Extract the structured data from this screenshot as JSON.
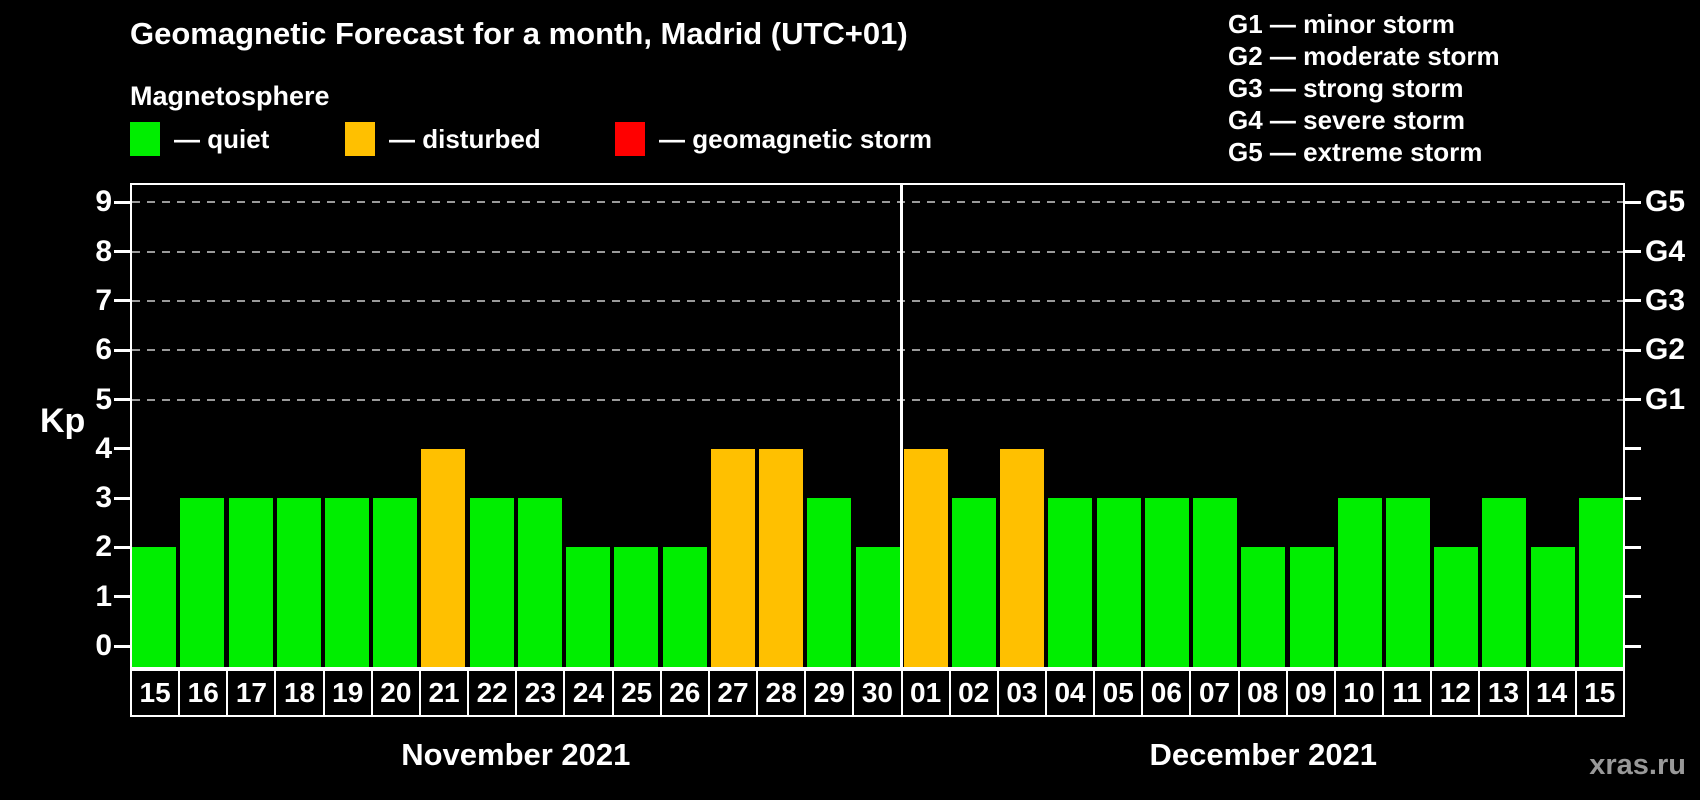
{
  "watermark": "xras.ru",
  "legend": {
    "heading": "Magnetosphere",
    "items": [
      {
        "label": "— quiet",
        "color": "#00ee00"
      },
      {
        "label": "— disturbed",
        "color": "#ffc000"
      },
      {
        "label": "— geomagnetic storm",
        "color": "#ff0000"
      }
    ]
  },
  "g_legend": [
    "G1 — minor storm",
    "G2 — moderate storm",
    "G3 — strong storm",
    "G4 — severe storm",
    "G5 — extreme storm"
  ],
  "chart_data": {
    "type": "bar",
    "title": "Geomagnetic Forecast for a month, Madrid (UTC+01)",
    "ylabel": "Kp",
    "ylim": [
      0,
      9.4
    ],
    "yticks": [
      0,
      1,
      2,
      3,
      4,
      5,
      6,
      7,
      8,
      9
    ],
    "grid": "dashed horizontal gridlines only at Kp 5-9 (G1-G5 storm levels)",
    "legend_position": "top",
    "right_axis": [
      {
        "kp": 5,
        "label": "G1"
      },
      {
        "kp": 6,
        "label": "G2"
      },
      {
        "kp": 7,
        "label": "G3"
      },
      {
        "kp": 8,
        "label": "G4"
      },
      {
        "kp": 9,
        "label": "G5"
      }
    ],
    "colors": {
      "quiet": "#00ee00",
      "disturbed": "#ffc000",
      "storm": "#ff0000"
    },
    "months": [
      {
        "label": "November 2021",
        "days": [
          {
            "day": "15",
            "kp": 2,
            "status": "quiet"
          },
          {
            "day": "16",
            "kp": 3,
            "status": "quiet"
          },
          {
            "day": "17",
            "kp": 3,
            "status": "quiet"
          },
          {
            "day": "18",
            "kp": 3,
            "status": "quiet"
          },
          {
            "day": "19",
            "kp": 3,
            "status": "quiet"
          },
          {
            "day": "20",
            "kp": 3,
            "status": "quiet"
          },
          {
            "day": "21",
            "kp": 4,
            "status": "disturbed"
          },
          {
            "day": "22",
            "kp": 3,
            "status": "quiet"
          },
          {
            "day": "23",
            "kp": 3,
            "status": "quiet"
          },
          {
            "day": "24",
            "kp": 2,
            "status": "quiet"
          },
          {
            "day": "25",
            "kp": 2,
            "status": "quiet"
          },
          {
            "day": "26",
            "kp": 2,
            "status": "quiet"
          },
          {
            "day": "27",
            "kp": 4,
            "status": "disturbed"
          },
          {
            "day": "28",
            "kp": 4,
            "status": "disturbed"
          },
          {
            "day": "29",
            "kp": 3,
            "status": "quiet"
          },
          {
            "day": "30",
            "kp": 2,
            "status": "quiet"
          }
        ]
      },
      {
        "label": "December 2021",
        "days": [
          {
            "day": "01",
            "kp": 4,
            "status": "disturbed"
          },
          {
            "day": "02",
            "kp": 3,
            "status": "quiet"
          },
          {
            "day": "03",
            "kp": 4,
            "status": "disturbed"
          },
          {
            "day": "04",
            "kp": 3,
            "status": "quiet"
          },
          {
            "day": "05",
            "kp": 3,
            "status": "quiet"
          },
          {
            "day": "06",
            "kp": 3,
            "status": "quiet"
          },
          {
            "day": "07",
            "kp": 3,
            "status": "quiet"
          },
          {
            "day": "08",
            "kp": 2,
            "status": "quiet"
          },
          {
            "day": "09",
            "kp": 2,
            "status": "quiet"
          },
          {
            "day": "10",
            "kp": 3,
            "status": "quiet"
          },
          {
            "day": "11",
            "kp": 3,
            "status": "quiet"
          },
          {
            "day": "12",
            "kp": 2,
            "status": "quiet"
          },
          {
            "day": "13",
            "kp": 3,
            "status": "quiet"
          },
          {
            "day": "14",
            "kp": 2,
            "status": "quiet"
          },
          {
            "day": "15",
            "kp": 3,
            "status": "quiet"
          }
        ]
      }
    ]
  }
}
